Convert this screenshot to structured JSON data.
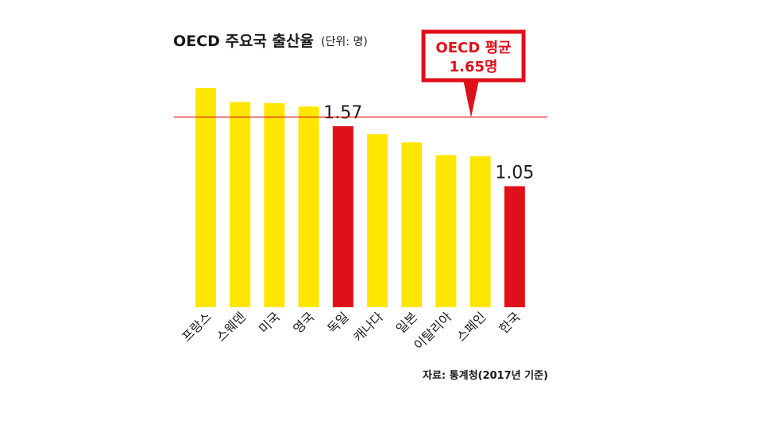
{
  "chart_data": {
    "type": "bar",
    "title": "OECD 주요국 출산율",
    "unit_label": "(단위: 명)",
    "categories": [
      "프랑스",
      "스웨덴",
      "미국",
      "영국",
      "독일",
      "캐나다",
      "일본",
      "이탈리아",
      "스페인",
      "한국"
    ],
    "values": [
      1.9,
      1.78,
      1.77,
      1.74,
      1.57,
      1.5,
      1.43,
      1.32,
      1.31,
      1.05
    ],
    "highlighted": [
      "독일",
      "한국"
    ],
    "data_labels": {
      "독일": "1.57",
      "한국": "1.05"
    },
    "reference_line": {
      "value": 1.65,
      "label_line1": "OECD 평균",
      "label_line2": "1.65명"
    },
    "source": "자료: 통계청(2017년 기준)",
    "ylim": [
      0,
      2
    ],
    "grid": false,
    "colors": {
      "bar": "#ffe600",
      "highlight": "#e0101a",
      "reference": "#e0101a"
    }
  }
}
